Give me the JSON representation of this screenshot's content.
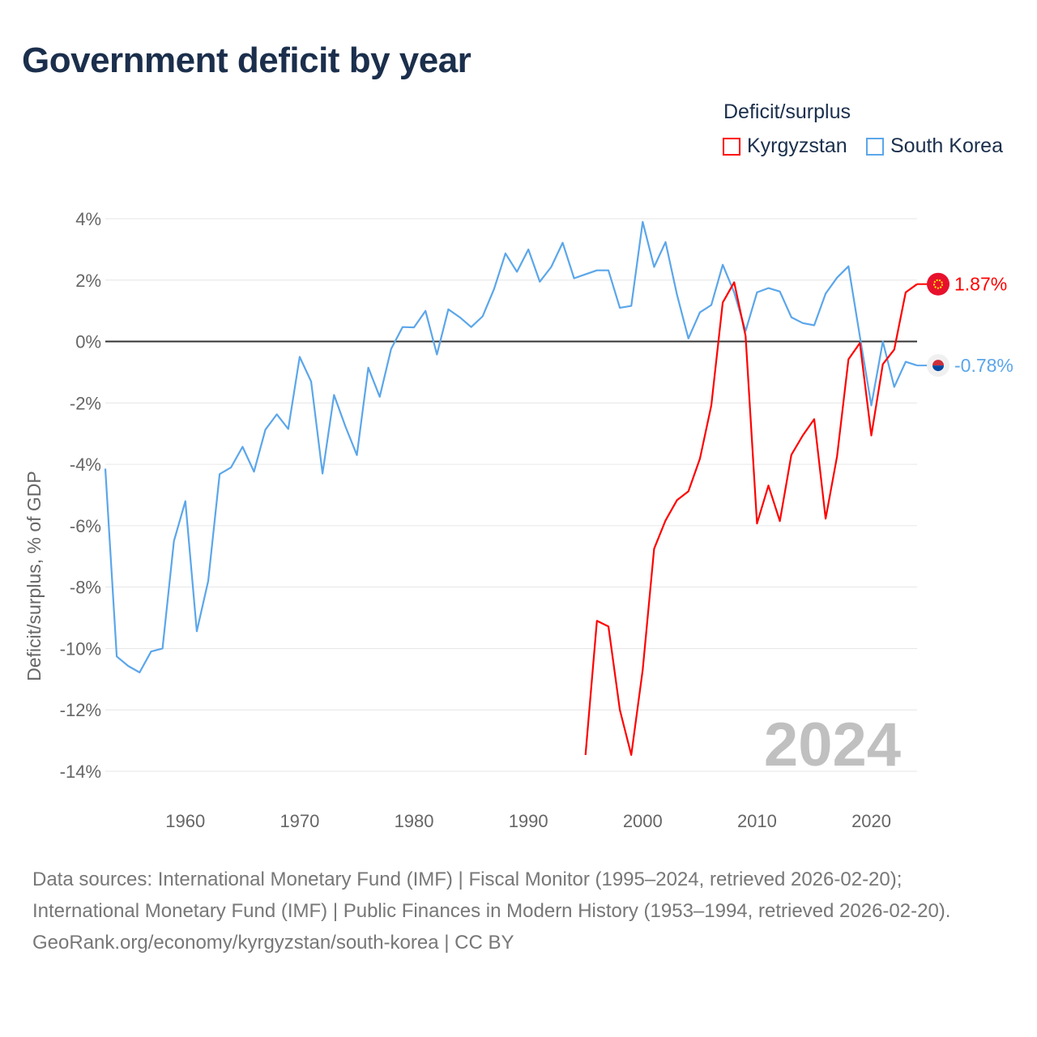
{
  "title": "Government deficit by year",
  "legend": {
    "title": "Deficit/surplus",
    "items": [
      {
        "label": "Kyrgyzstan",
        "color": "#ff0000"
      },
      {
        "label": "South Korea",
        "color": "#5ba6ea"
      }
    ]
  },
  "chart_data": {
    "type": "line",
    "title": "Government deficit by year",
    "xlabel": "",
    "ylabel": "Deficit/surplus, % of GDP",
    "xlim": [
      1953,
      2024
    ],
    "ylim": [
      -14,
      4
    ],
    "yticks": [
      4,
      2,
      0,
      -2,
      -4,
      -6,
      -8,
      -10,
      -12,
      -14
    ],
    "ytick_labels": [
      "4%",
      "2%",
      "0%",
      "-2%",
      "-4%",
      "-6%",
      "-8%",
      "-10%",
      "-12%",
      "-14%"
    ],
    "xticks": [
      1960,
      1970,
      1980,
      1990,
      2000,
      2010,
      2020
    ],
    "xtick_labels": [
      "1960",
      "1970",
      "1980",
      "1990",
      "2000",
      "2010",
      "2020"
    ],
    "grid": true,
    "year_watermark": "2024",
    "series": [
      {
        "name": "Kyrgyzstan",
        "color": "#ff0000",
        "end_label": "1.87%",
        "start_year": 1995,
        "values": [
          -13.47,
          -9.1,
          -9.28,
          -12.0,
          -13.47,
          -10.7,
          -6.75,
          -5.83,
          -5.17,
          -4.88,
          -3.82,
          -2.08,
          1.27,
          1.93,
          0.18,
          -5.93,
          -4.69,
          -5.85,
          -3.69,
          -3.06,
          -2.53,
          -5.77,
          -3.74,
          -0.58,
          -0.05,
          -3.06,
          -0.74,
          -0.26,
          1.6,
          1.87
        ]
      },
      {
        "name": "South Korea",
        "color": "#5ba6ea",
        "end_label": "-0.78%",
        "start_year": 1953,
        "values": [
          -4.14,
          -10.26,
          -10.57,
          -10.78,
          -10.1,
          -10.0,
          -6.5,
          -5.2,
          -9.44,
          -7.8,
          -4.32,
          -4.1,
          -3.43,
          -4.24,
          -2.87,
          -2.37,
          -2.85,
          -0.5,
          -1.3,
          -4.3,
          -1.74,
          -2.77,
          -3.7,
          -0.85,
          -1.8,
          -0.24,
          0.47,
          0.46,
          1.0,
          -0.42,
          1.05,
          0.79,
          0.47,
          0.82,
          1.71,
          2.87,
          2.27,
          3.0,
          1.95,
          2.43,
          3.22,
          2.06,
          2.19,
          2.32,
          2.32,
          1.1,
          1.16,
          3.9,
          2.43,
          3.24,
          1.53,
          0.1,
          0.95,
          1.19,
          2.5,
          1.6,
          0.34,
          1.6,
          1.74,
          1.63,
          0.79,
          0.6,
          0.53,
          1.56,
          2.08,
          2.45,
          0.16,
          -2.08,
          0.0,
          -1.48,
          -0.66,
          -0.78
        ]
      }
    ]
  },
  "footer": {
    "sources": "Data sources: International Monetary Fund (IMF) | Fiscal Monitor (1995–2024, retrieved 2026-02-20); International Monetary Fund (IMF) | Public Finances in Modern History (1953–1994, retrieved 2026-02-20).",
    "link": "GeoRank.org/economy/kyrgyzstan/south-korea | CC BY"
  }
}
